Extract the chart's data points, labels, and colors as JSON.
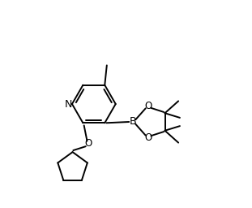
{
  "bg_color": "#ffffff",
  "line_color": "#000000",
  "line_width": 1.4,
  "font_size": 8.5,
  "figsize": [
    3.11,
    2.56
  ],
  "dpi": 100,
  "xlim": [
    0,
    1
  ],
  "ylim": [
    0,
    1
  ]
}
